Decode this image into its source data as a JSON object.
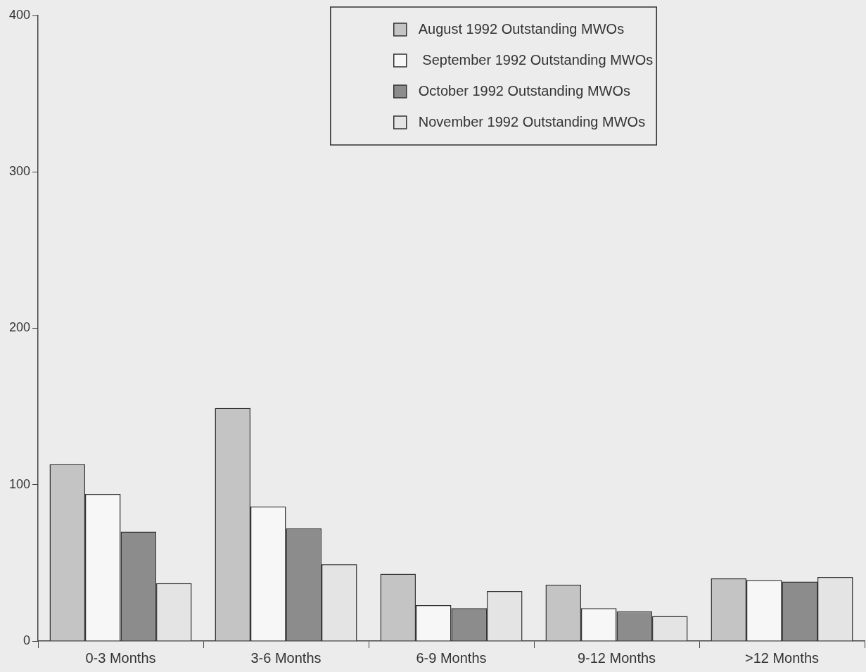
{
  "chart_data": {
    "type": "bar",
    "categories": [
      "0-3 Months",
      "3-6 Months",
      "6-9 Months",
      "9-12 Months",
      ">12 Months"
    ],
    "series": [
      {
        "name": "August 1992 Outstanding MWOs",
        "color": "#c4c4c4",
        "values": [
          113,
          149,
          43,
          36,
          40
        ]
      },
      {
        "name": " September 1992 Outstanding MWOs",
        "color": "#f7f7f7",
        "values": [
          94,
          86,
          23,
          21,
          39
        ]
      },
      {
        "name": "October 1992 Outstanding MWOs",
        "color": "#8c8c8c",
        "values": [
          70,
          72,
          21,
          19,
          38
        ]
      },
      {
        "name": "November 1992 Outstanding MWOs",
        "color": "#e4e4e4",
        "values": [
          37,
          49,
          32,
          16,
          41
        ]
      }
    ],
    "ylim": [
      0,
      400
    ],
    "yticks": [
      0,
      100,
      200,
      300,
      400
    ],
    "grid": false,
    "legend": "top"
  }
}
